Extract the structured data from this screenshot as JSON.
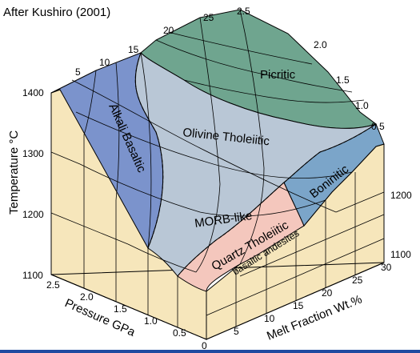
{
  "citation": "After Kushiro (2001)",
  "axes": {
    "temperature": {
      "label": "Temperature °C",
      "left_ticks": [
        "1400",
        "1300",
        "1200",
        "1100"
      ],
      "right_ticks": [
        "1200",
        "1100"
      ]
    },
    "pressure": {
      "label": "Pressure GPa",
      "front_ticks": [
        "2.5",
        "2.0",
        "1.5",
        "1.0",
        "0.5",
        "0"
      ],
      "back_ticks": [
        "2.5",
        "2.0",
        "1.5",
        "1.0",
        "0.5"
      ]
    },
    "melt_fraction": {
      "label": "Melt Fraction Wt.%",
      "front_ticks": [
        "5",
        "10",
        "15",
        "20",
        "25",
        "30"
      ],
      "top_ticks": [
        "5",
        "10",
        "15",
        "20",
        "25"
      ]
    }
  },
  "regions": [
    {
      "label": "Alkali Basaltic",
      "color": "#7b93cc"
    },
    {
      "label": "Picritic",
      "color": "#6fa58f"
    },
    {
      "label": "Olivine Tholeiitic",
      "color": "#b9c7d6"
    },
    {
      "label": "MORB-like",
      "color": "#b9c7d6"
    },
    {
      "label": "Quartz Tholeiitic",
      "color": "#f4c7bd"
    },
    {
      "label": "basaltic andesites",
      "color": "#f4c7bd"
    },
    {
      "label": "Boninitic",
      "color": "#7ba5c9"
    }
  ],
  "colors": {
    "base_face": "#f6e6bb",
    "grid": "#000000"
  }
}
